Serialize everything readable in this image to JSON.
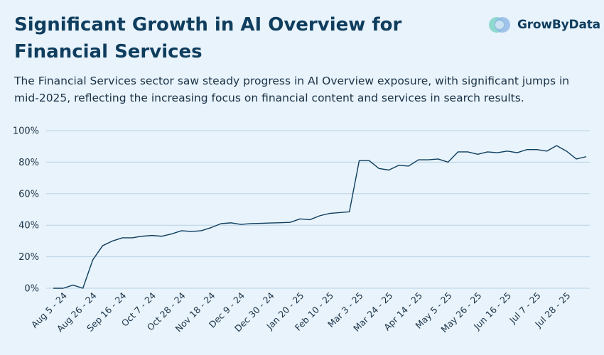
{
  "header": {
    "title": "Significant Growth in AI Overview for Financial Services",
    "subtitle": "The Financial Services sector saw steady progress in AI Overview exposure, with significant jumps in mid-2025, reflecting the increasing focus on financial content and services in search results.",
    "logo_text": "GrowByData",
    "logo_icon": "growbydata-logo-icon"
  },
  "colors": {
    "background": "#e8f3fb",
    "title": "#0f3d5e",
    "line": "#0f3d5e",
    "grid": "#b9d3e4"
  },
  "chart_data": {
    "type": "line",
    "title": "Significant Growth in AI Overview for Financial Services",
    "xlabel": "",
    "ylabel": "",
    "ylim": [
      0,
      100
    ],
    "y_ticks": [
      0,
      20,
      40,
      60,
      80,
      100
    ],
    "y_tick_labels": [
      "0%",
      "20%",
      "40%",
      "60%",
      "80%",
      "100%"
    ],
    "x_tick_labels": [
      "Aug 5 - 24",
      "Aug 26 - 24",
      "Sep 16 - 24",
      "Oct 7 - 24",
      "Oct 28 - 24",
      "Nov 18 - 24",
      "Dec 9 - 24",
      "Dec 30 - 24",
      "Jan 20 - 25",
      "Feb 10 - 25",
      "Mar 3 - 25",
      "Mar 24 - 25",
      "Apr 14 - 25",
      "May 5 - 25",
      "May 26 - 25",
      "Jun 16 - 25",
      "Jul 7 - 25",
      "Jul 28 - 25"
    ],
    "grid": true,
    "series": [
      {
        "name": "Financial Services",
        "values": [
          0,
          0,
          2,
          0,
          18,
          27,
          30,
          32,
          32,
          33,
          33.5,
          33,
          34.5,
          36.5,
          36,
          36.5,
          38.5,
          41,
          41.5,
          40.5,
          41,
          41.2,
          41.4,
          41.6,
          41.8,
          44,
          43.5,
          46,
          47.5,
          48,
          48.5,
          81,
          81,
          76,
          75,
          78,
          77.5,
          81.5,
          81.5,
          82,
          80,
          86.5,
          86.5,
          85,
          86.5,
          86,
          87,
          86,
          88,
          88,
          87,
          90.5,
          87,
          82,
          83.5
        ]
      }
    ]
  }
}
